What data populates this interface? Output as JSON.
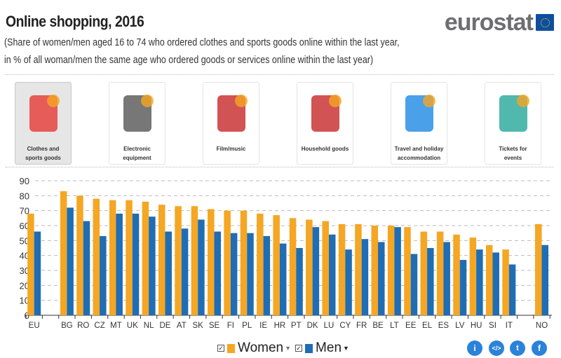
{
  "header": {
    "title": "Online shopping, 2016",
    "subtitle_line1": "(Share of women/men aged 16 to 74 who ordered clothes and sports goods online within the last year,",
    "subtitle_line2": "in % of all woman/men the same age who ordered goods or services online within the last year)",
    "logo": "eurostat"
  },
  "categories": [
    {
      "line1": "Clothes and",
      "line2": "sports goods",
      "icon": "clothes-icon",
      "selected": true
    },
    {
      "line1": "Electronic",
      "line2": "equipment",
      "icon": "electronics-icon",
      "selected": false
    },
    {
      "line1": "Film/music",
      "line2": "",
      "icon": "film-music-icon",
      "selected": false
    },
    {
      "line1": "Household goods",
      "line2": "",
      "icon": "household-icon",
      "selected": false
    },
    {
      "line1": "Travel and holiday",
      "line2": "accommodation",
      "icon": "travel-icon",
      "selected": false
    },
    {
      "line1": "Tickets for",
      "line2": "events",
      "icon": "tickets-icon",
      "selected": false
    }
  ],
  "legend": {
    "women": "Women",
    "men": "Men"
  },
  "share_icons": [
    "info-icon",
    "embed-icon",
    "twitter-icon",
    "facebook-icon"
  ],
  "chart_data": {
    "type": "bar",
    "categories": [
      "EU",
      "",
      "BG",
      "RO",
      "CZ",
      "MT",
      "UK",
      "NL",
      "DE",
      "AT",
      "SK",
      "SE",
      "FI",
      "PL",
      "IE",
      "HR",
      "PT",
      "DK",
      "LU",
      "CY",
      "FR",
      "BE",
      "LT",
      "EE",
      "EL",
      "ES",
      "LV",
      "HU",
      "SI",
      "IT",
      "",
      "NO"
    ],
    "series": [
      {
        "name": "Women",
        "color": "#f5a623",
        "values": [
          68,
          null,
          83,
          80,
          78,
          77,
          77,
          76,
          74,
          73,
          73,
          71,
          70,
          70,
          68,
          67,
          65,
          64,
          63,
          61,
          61,
          60,
          60,
          59,
          56,
          56,
          54,
          52,
          47,
          44,
          null,
          61
        ]
      },
      {
        "name": "Men",
        "color": "#1f6db5",
        "values": [
          56,
          null,
          72,
          63,
          53,
          68,
          68,
          66,
          56,
          58,
          64,
          56,
          55,
          55,
          53,
          48,
          45,
          59,
          54,
          44,
          51,
          49,
          59,
          41,
          45,
          49,
          37,
          44,
          42,
          34,
          null,
          47
        ]
      }
    ],
    "yticks": [
      0,
      10,
      20,
      30,
      40,
      50,
      60,
      70,
      80,
      90
    ],
    "ylim": [
      0,
      90
    ],
    "grid": true,
    "legend_position": "bottom"
  }
}
